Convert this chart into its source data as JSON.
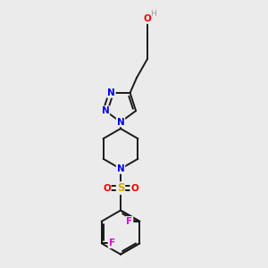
{
  "background_color": "#ebebeb",
  "bond_color": "#1a1a1a",
  "atom_colors": {
    "N": "#0000ee",
    "O": "#ee0000",
    "S": "#ccaa00",
    "F": "#dd00dd",
    "H": "#999999",
    "C": "#1a1a1a"
  },
  "figsize": [
    3.0,
    3.0
  ],
  "dpi": 100
}
